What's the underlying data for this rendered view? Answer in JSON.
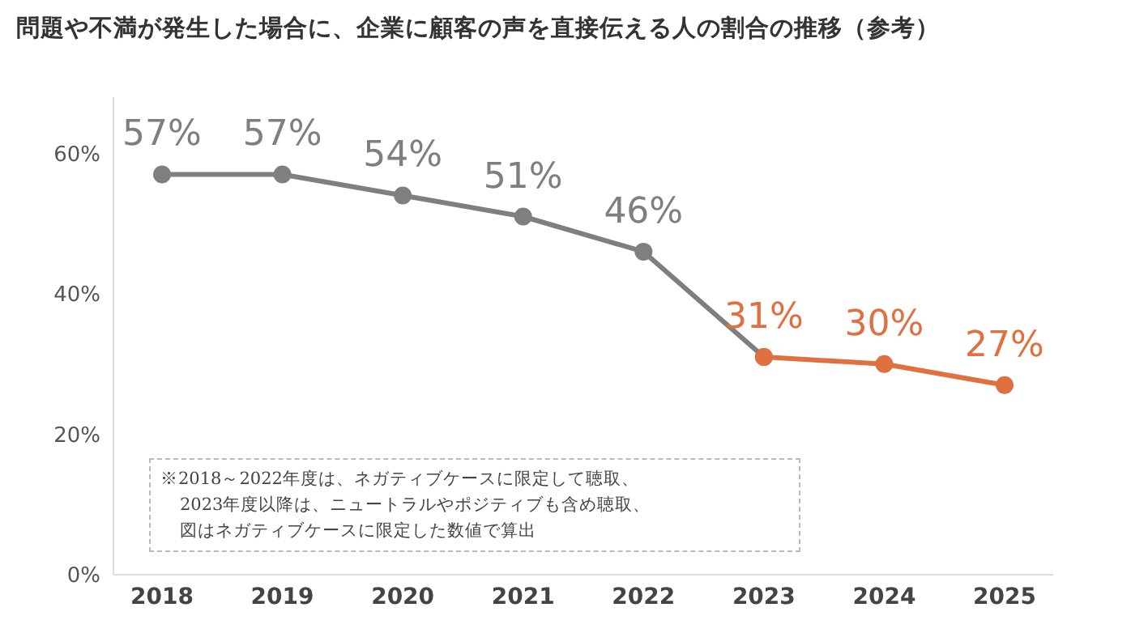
{
  "chart_data": {
    "type": "line",
    "title": "問題や不満が発生した場合に、企業に顧客の声を直接伝える人の割合の推移（参考）",
    "categories": [
      "2018",
      "2019",
      "2020",
      "2021",
      "2022",
      "2023",
      "2024",
      "2025"
    ],
    "series": [
      {
        "color": "#7f7f7f",
        "values": [
          57,
          57,
          54,
          51,
          46,
          31,
          null,
          null
        ],
        "value_labels": [
          "57%",
          "57%",
          "54%",
          "51%",
          "46%",
          null,
          null,
          null
        ]
      },
      {
        "color": "#e0703f",
        "values": [
          null,
          null,
          null,
          null,
          null,
          31,
          30,
          27
        ],
        "value_labels": [
          null,
          null,
          null,
          null,
          null,
          "31%",
          "30%",
          "27%"
        ]
      }
    ],
    "ylim": [
      0,
      68
    ],
    "yticks": [
      {
        "value": 0,
        "label": "0%"
      },
      {
        "value": 20,
        "label": "20%"
      },
      {
        "value": 40,
        "label": "40%"
      },
      {
        "value": 60,
        "label": "60%"
      }
    ],
    "grid": false,
    "marker": "circle",
    "line_style": "solid",
    "annotations": [
      "※2018～2022年度は、ネガティブケースに限定して聴取、",
      "2023年度以降は、ニュートラルやポジティブも含め聴取、",
      "図はネガティブケースに限定した数値で算出"
    ]
  }
}
